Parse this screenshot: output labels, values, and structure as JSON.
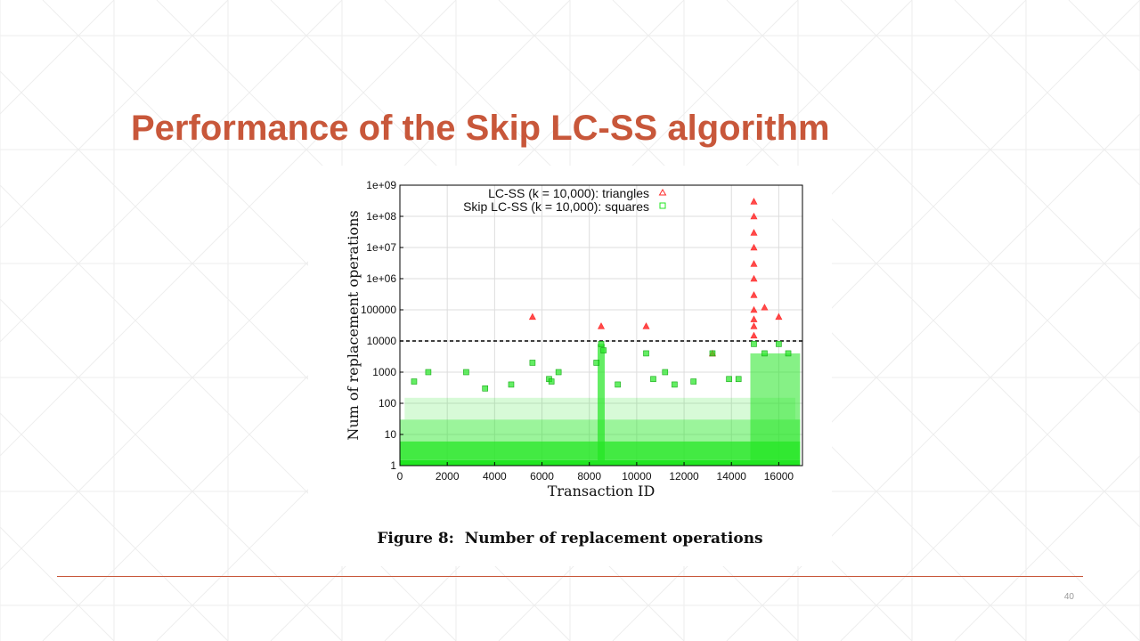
{
  "slide": {
    "title": "Performance of the Skip LC-SS algorithm",
    "page_number": "40",
    "caption": "Figure 8:  Number of replacement operations"
  },
  "colors": {
    "title": "#c8573a",
    "rule": "#c8573a",
    "triangles": "#ff2a2a",
    "squares": "#22e622",
    "threshold": "#000000",
    "background_lines": "#eeeeee"
  },
  "chart_data": {
    "type": "scatter",
    "xlabel": "Transaction ID",
    "ylabel": "Num of replacement operations",
    "x_ticks": [
      "0",
      "2000",
      "4000",
      "6000",
      "8000",
      "10000",
      "12000",
      "14000",
      "16000"
    ],
    "x_tick_values": [
      0,
      2000,
      4000,
      6000,
      8000,
      10000,
      12000,
      14000,
      16000
    ],
    "y_ticks": [
      "1",
      "10",
      "100",
      "1000",
      "10000",
      "100000",
      "1e+06",
      "1e+07",
      "1e+08",
      "1e+09"
    ],
    "y_tick_values": [
      1,
      10,
      100,
      1000,
      10000,
      100000,
      1000000,
      10000000,
      100000000,
      1000000000
    ],
    "xlim": [
      0,
      17000
    ],
    "y_scale": "log",
    "ylim": [
      1,
      1000000000
    ],
    "grid": true,
    "legend_position": "top-left",
    "threshold": 10000,
    "series": [
      {
        "name": "LC-SS (k = 10,000): triangles",
        "marker": "triangle",
        "points": [
          [
            5600,
            60000
          ],
          [
            8500,
            30000
          ],
          [
            10400,
            30000
          ],
          [
            13200,
            4000
          ],
          [
            14950,
            300000000
          ],
          [
            14950,
            100000000
          ],
          [
            14950,
            30000000
          ],
          [
            14950,
            10000000
          ],
          [
            14950,
            3000000
          ],
          [
            14950,
            1000000
          ],
          [
            14950,
            300000
          ],
          [
            14950,
            100000
          ],
          [
            14950,
            50000
          ],
          [
            14950,
            30000
          ],
          [
            14950,
            15000
          ],
          [
            15400,
            120000
          ],
          [
            16000,
            60000
          ]
        ]
      },
      {
        "name": "Skip LC-SS (k = 10,000): squares",
        "marker": "square",
        "points": [
          [
            600,
            500
          ],
          [
            1200,
            1000
          ],
          [
            2800,
            1000
          ],
          [
            5600,
            2000
          ],
          [
            6300,
            600
          ],
          [
            6400,
            500
          ],
          [
            6700,
            1000
          ],
          [
            8300,
            2000
          ],
          [
            8500,
            8000
          ],
          [
            8600,
            5000
          ],
          [
            10400,
            4000
          ],
          [
            10700,
            600
          ],
          [
            11200,
            1000
          ],
          [
            11600,
            400
          ],
          [
            12400,
            500
          ],
          [
            13200,
            4000
          ],
          [
            13900,
            600
          ],
          [
            14300,
            600
          ],
          [
            14950,
            8000
          ],
          [
            15400,
            4000
          ],
          [
            16000,
            8000
          ],
          [
            16400,
            4000
          ],
          [
            4700,
            400
          ],
          [
            3600,
            300
          ],
          [
            9200,
            400
          ]
        ]
      }
    ]
  }
}
